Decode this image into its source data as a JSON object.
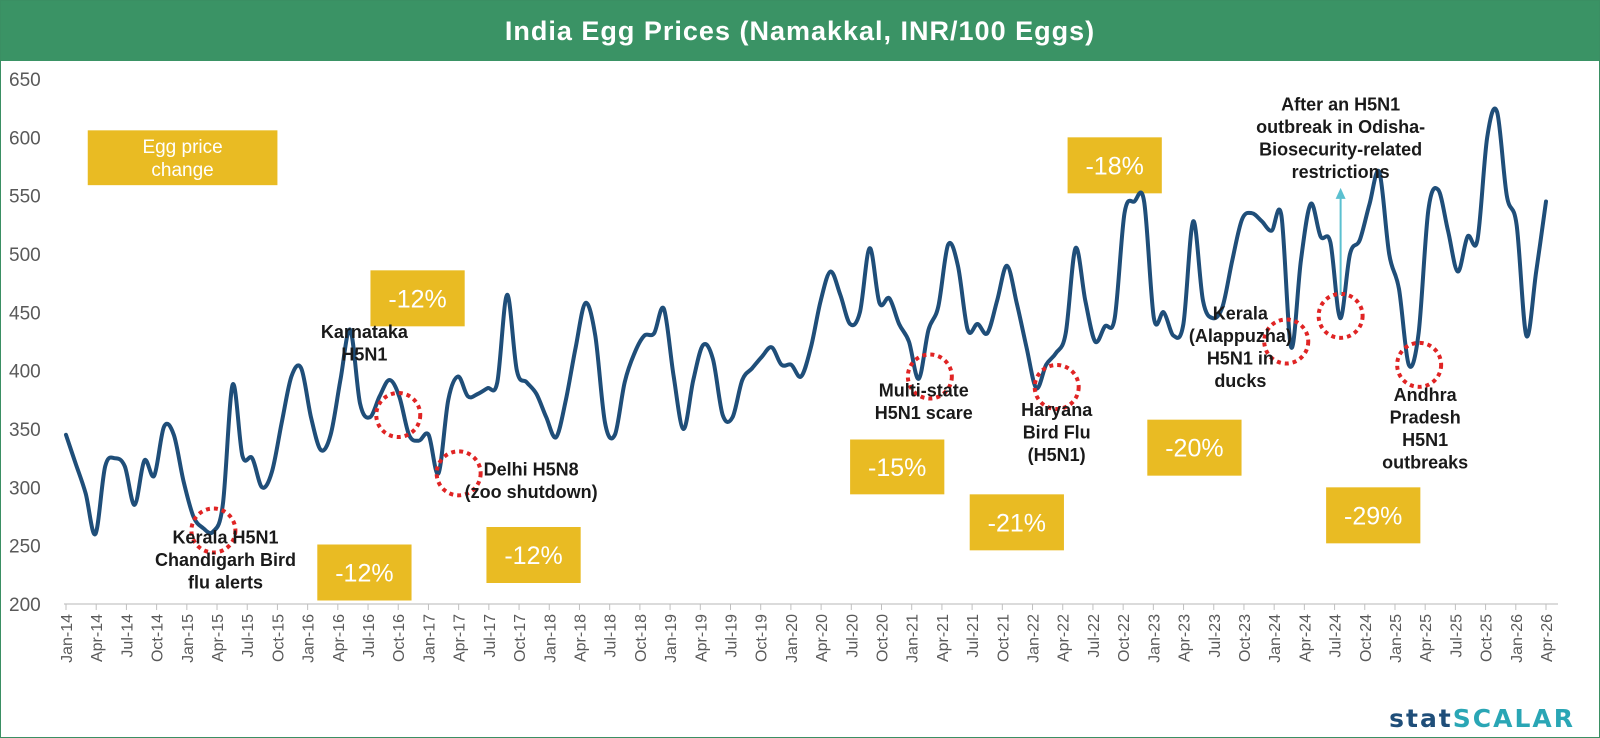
{
  "title": "India Egg Prices (Namakkal, INR/100 Eggs)",
  "brand": {
    "part1": "stat",
    "part2": "SCALAR"
  },
  "colors": {
    "header": "#3a9365",
    "line": "#1f4e79",
    "box": "#e9bb23",
    "circle": "#e02424",
    "arrow": "#5bc0d0"
  },
  "chart_data": {
    "type": "line",
    "title": "India Egg Prices (Namakkal, INR/100 Eggs)",
    "ylim": [
      200,
      650
    ],
    "yticks": [
      200,
      250,
      300,
      350,
      400,
      450,
      500,
      550,
      600,
      650
    ],
    "xlabels": [
      "Jan-14",
      "Apr-14",
      "Jul-14",
      "Oct-14",
      "Jan-15",
      "Apr-15",
      "Jul-15",
      "Oct-15",
      "Jan-16",
      "Apr-16",
      "Jul-16",
      "Oct-16",
      "Jan-17",
      "Apr-17",
      "Jul-17",
      "Oct-17",
      "Jan-18",
      "Apr-18",
      "Jul-18",
      "Oct-18",
      "Jan-19",
      "Apr-19",
      "Jul-19",
      "Oct-19",
      "Jan-20",
      "Apr-20",
      "Jul-20",
      "Oct-20",
      "Jan-21",
      "Apr-21",
      "Jul-21",
      "Oct-21",
      "Jan-22",
      "Apr-22",
      "Jul-22",
      "Oct-22",
      "Jan-23",
      "Apr-23",
      "Jul-23",
      "Oct-23",
      "Jan-24",
      "Apr-24",
      "Jul-24",
      "Oct-24",
      "Jan-25",
      "Apr-25",
      "Jul-25",
      "Oct-25",
      "Jan-26",
      "Apr-26"
    ],
    "grid": false,
    "series": [
      {
        "values": [
          345,
          320,
          295,
          260,
          318,
          325,
          318,
          285,
          323,
          310,
          352,
          345,
          305,
          275,
          265,
          262,
          285,
          388,
          327,
          325,
          300,
          313,
          355,
          395,
          402,
          360,
          332,
          345,
          392,
          435,
          372,
          360,
          378,
          392,
          378,
          345,
          340,
          345,
          312,
          375,
          395,
          378,
          380,
          385,
          390,
          465,
          400,
          390,
          380,
          360,
          343,
          375,
          420,
          458,
          430,
          355,
          345,
          390,
          415,
          430,
          432,
          453,
          395,
          350,
          392,
          422,
          410,
          362,
          360,
          392,
          402,
          412,
          420,
          405,
          405,
          395,
          420,
          460,
          485,
          465,
          440,
          450,
          505,
          458,
          462,
          440,
          425,
          393,
          435,
          455,
          508,
          490,
          435,
          440,
          432,
          460,
          490,
          458,
          420,
          385,
          405,
          415,
          432,
          505,
          460,
          425,
          438,
          445,
          535,
          545,
          545,
          445,
          450,
          430,
          440,
          528,
          460,
          445,
          455,
          495,
          530,
          535,
          528,
          520,
          533,
          420,
          495,
          543,
          515,
          510,
          445,
          500,
          512,
          543,
          570,
          500,
          470,
          405,
          432,
          538,
          555,
          520,
          485,
          515,
          512,
          600,
          622,
          550,
          525,
          430,
          485,
          545
        ]
      }
    ],
    "dips": [
      {
        "x": 1.22,
        "y": 263
      },
      {
        "x": 2.75,
        "y": 362
      },
      {
        "x": 3.25,
        "y": 312
      },
      {
        "x": 7.15,
        "y": 395
      },
      {
        "x": 8.2,
        "y": 386
      },
      {
        "x": 10.1,
        "y": 425
      },
      {
        "x": 10.55,
        "y": 447
      },
      {
        "x": 11.2,
        "y": 405
      }
    ],
    "annotations": [
      {
        "lines": [
          "Kerala H5N1",
          "Chandigarh Bird",
          "flu alerts"
        ],
        "x": 1.32,
        "y": 252
      },
      {
        "lines": [
          "Karnataka",
          "H5N1"
        ],
        "x": 2.47,
        "y": 428
      },
      {
        "lines": [
          "Delhi H5N8",
          "(zoo shutdown)"
        ],
        "x": 3.85,
        "y": 310
      },
      {
        "lines": [
          "Multi-state",
          "H5N1 scare"
        ],
        "x": 7.1,
        "y": 378
      },
      {
        "lines": [
          "Haryana",
          "Bird Flu",
          "(H5N1)"
        ],
        "x": 8.2,
        "y": 361
      },
      {
        "lines": [
          "Kerala",
          "(Alappuzha)",
          "H5N1 in",
          "ducks"
        ],
        "x": 9.72,
        "y": 444
      },
      {
        "lines": [
          "After an H5N1",
          "outbreak in Odisha-",
          "Biosecurity-related",
          "restrictions"
        ],
        "x": 10.55,
        "y": 623
      },
      {
        "lines": [
          "Andhra",
          "Pradesh",
          "H5N1",
          "outbreaks"
        ],
        "x": 11.25,
        "y": 374
      }
    ],
    "change_boxes": [
      {
        "label": "Egg price change",
        "lines": [
          "Egg price",
          "change"
        ],
        "x0": 0.18,
        "x1": 1.75,
        "y0": 559,
        "y1": 606
      },
      {
        "label": "-12%",
        "lines": [
          "-12%"
        ],
        "x0": 2.08,
        "x1": 2.86,
        "y0": 203,
        "y1": 251
      },
      {
        "label": "-12%",
        "lines": [
          "-12%"
        ],
        "x0": 2.52,
        "x1": 3.3,
        "y0": 438,
        "y1": 486
      },
      {
        "label": "-12%",
        "lines": [
          "-12%"
        ],
        "x0": 3.48,
        "x1": 4.26,
        "y0": 218,
        "y1": 266
      },
      {
        "label": "-15%",
        "lines": [
          "-15%"
        ],
        "x0": 6.49,
        "x1": 7.27,
        "y0": 294,
        "y1": 341
      },
      {
        "label": "-21%",
        "lines": [
          "-21%"
        ],
        "x0": 7.48,
        "x1": 8.26,
        "y0": 246,
        "y1": 294
      },
      {
        "label": "-20%",
        "lines": [
          "-20%"
        ],
        "x0": 8.95,
        "x1": 9.73,
        "y0": 310,
        "y1": 358
      },
      {
        "label": "-18%",
        "lines": [
          "-18%"
        ],
        "x0": 8.29,
        "x1": 9.07,
        "y0": 552,
        "y1": 600
      },
      {
        "label": "-29%",
        "lines": [
          "-29%"
        ],
        "x0": 10.43,
        "x1": 11.21,
        "y0": 252,
        "y1": 300
      }
    ],
    "arrow": {
      "x": 10.55,
      "y_from": 465,
      "y_to": 555
    }
  }
}
